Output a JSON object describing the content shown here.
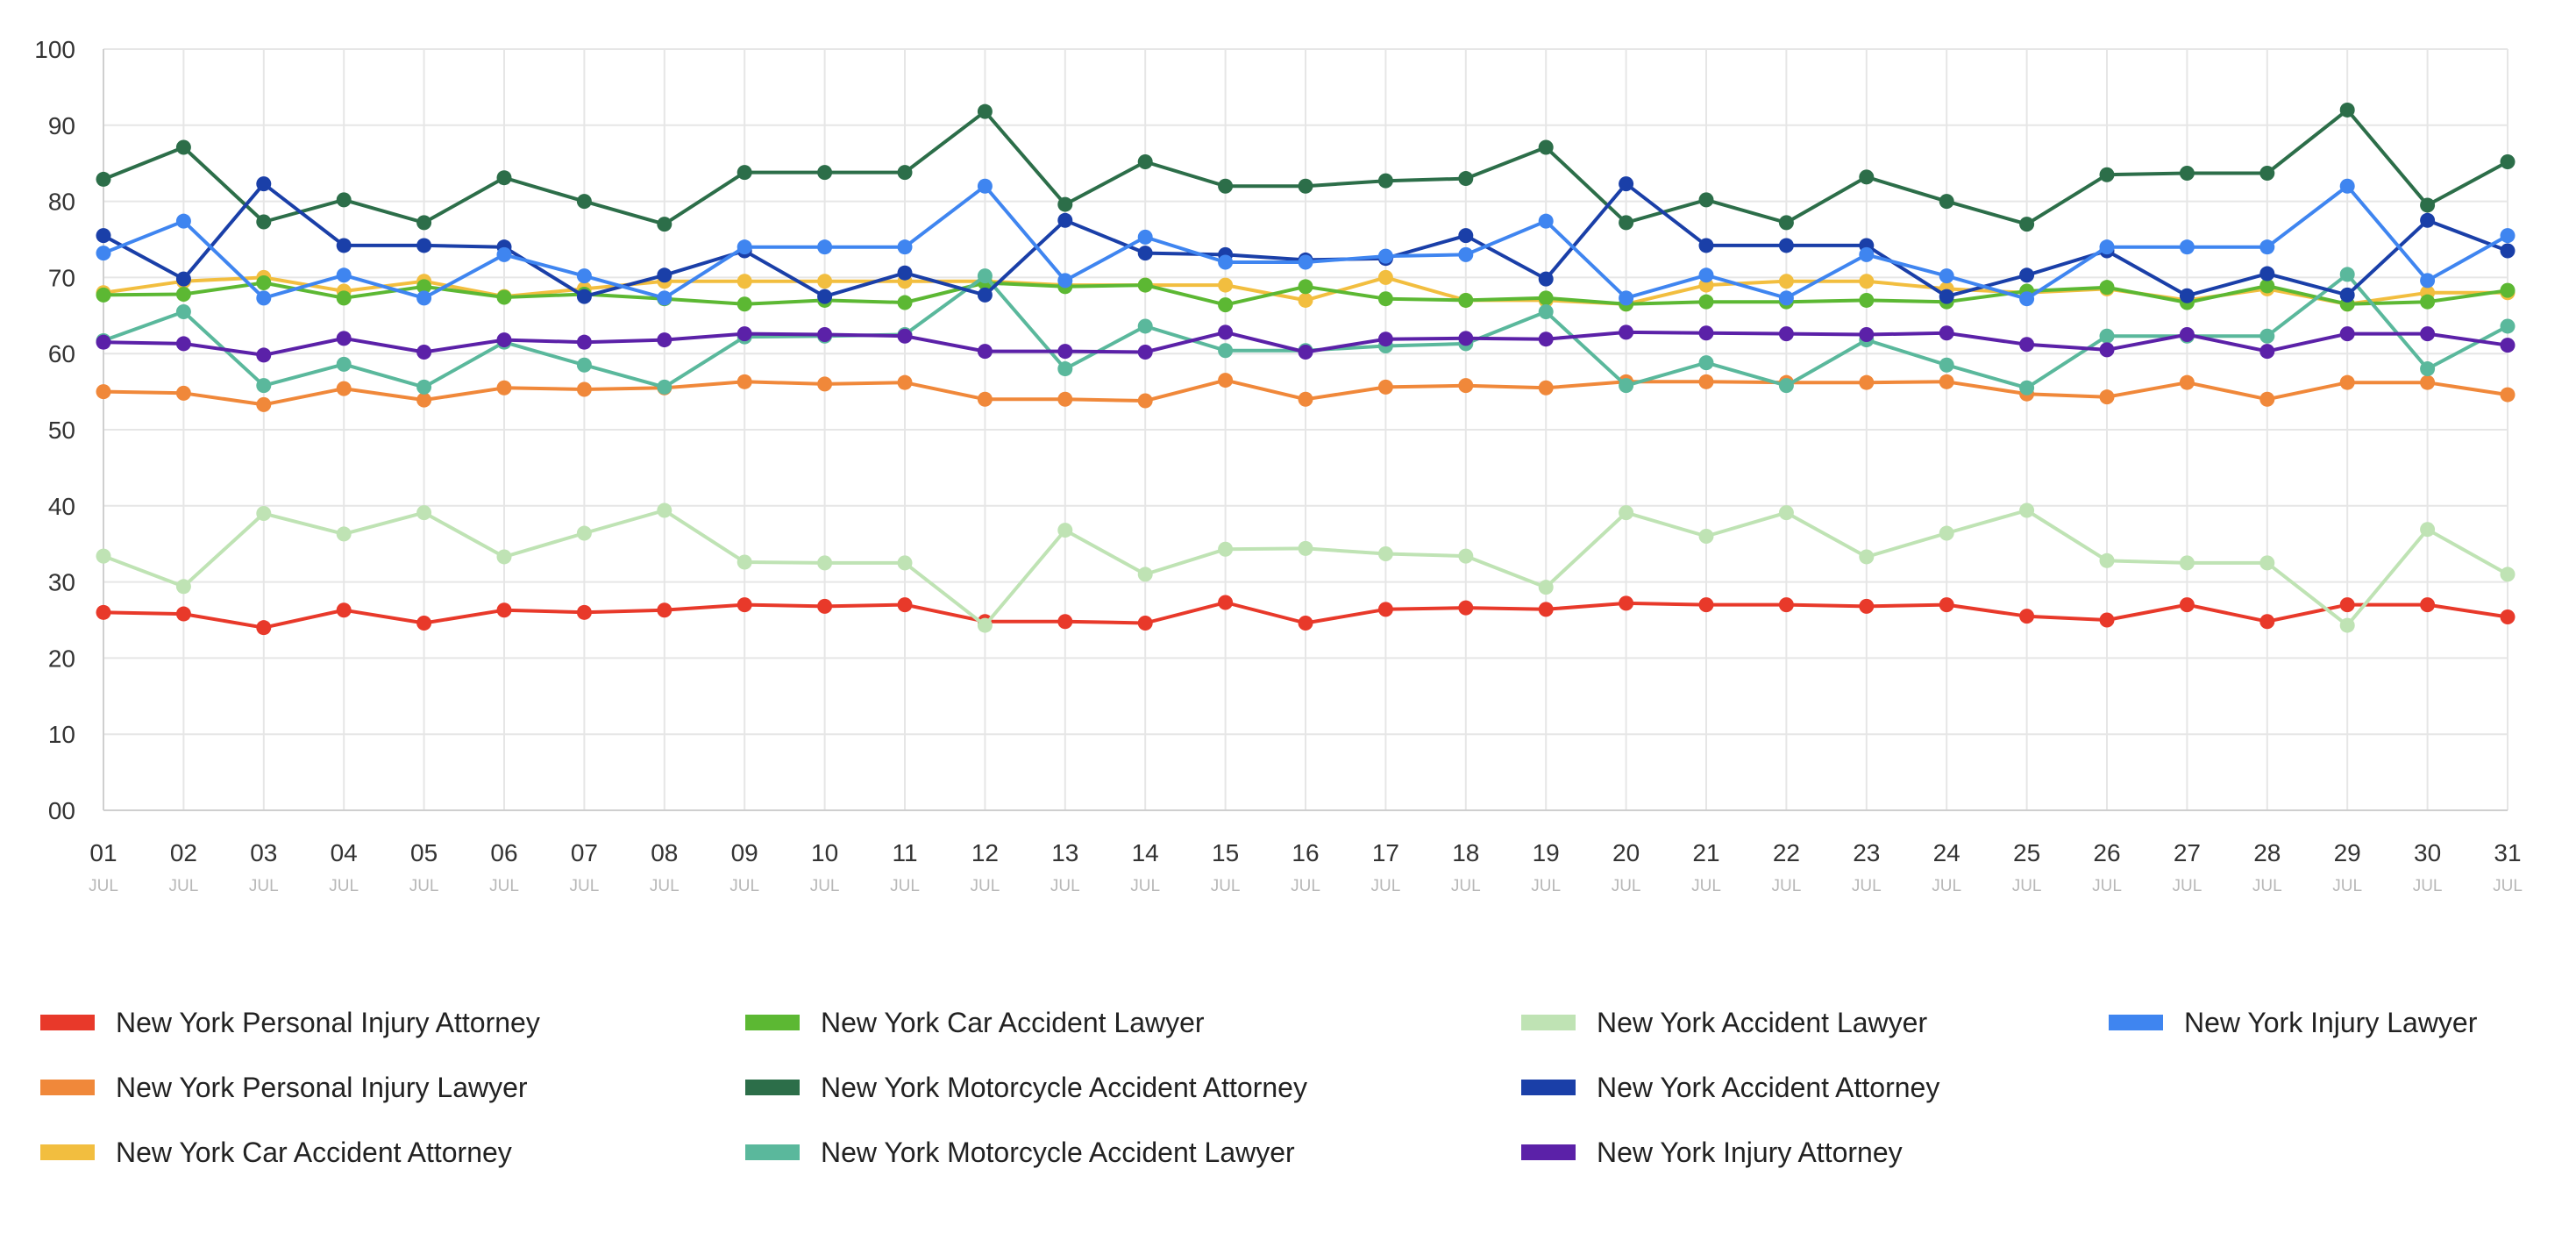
{
  "chart_data": {
    "type": "line",
    "title": "",
    "xlabel": "",
    "ylabel": "",
    "ylim": [
      0,
      100
    ],
    "yticks": [
      "00",
      "10",
      "20",
      "30",
      "40",
      "50",
      "60",
      "70",
      "80",
      "90",
      "100"
    ],
    "grid": true,
    "legend_position": "bottom",
    "x_month": "JUL",
    "x": [
      "01",
      "02",
      "03",
      "04",
      "05",
      "06",
      "07",
      "08",
      "09",
      "10",
      "11",
      "12",
      "13",
      "14",
      "15",
      "16",
      "17",
      "18",
      "19",
      "20",
      "21",
      "22",
      "23",
      "24",
      "25",
      "26",
      "27",
      "28",
      "29",
      "30",
      "31"
    ],
    "series": [
      {
        "name": "New York Personal Injury Attorney",
        "color": "#e8392a",
        "values": [
          26,
          25.8,
          24,
          26.3,
          24.6,
          26.3,
          26,
          26.3,
          27,
          26.8,
          27,
          24.8,
          24.8,
          24.6,
          27.3,
          24.6,
          26.4,
          26.6,
          26.4,
          27.2,
          27,
          27,
          26.8,
          27,
          25.5,
          25,
          27,
          24.8,
          27,
          27,
          25.4
        ]
      },
      {
        "name": "New York Personal Injury Lawyer",
        "color": "#f0883a",
        "values": [
          55,
          54.8,
          53.3,
          55.4,
          53.9,
          55.5,
          55.3,
          55.5,
          56.3,
          56,
          56.2,
          54,
          54,
          53.8,
          56.5,
          54,
          55.6,
          55.8,
          55.5,
          56.3,
          56.3,
          56.2,
          56.2,
          56.3,
          54.7,
          54.3,
          56.2,
          54,
          56.2,
          56.2,
          54.6
        ]
      },
      {
        "name": "New York Car Accident Attorney",
        "color": "#f2be3f",
        "values": [
          68,
          69.5,
          70,
          68.2,
          69.5,
          67.5,
          68.5,
          69.5,
          69.5,
          69.5,
          69.5,
          69.5,
          69,
          69,
          69,
          67,
          70,
          67,
          67,
          66.5,
          69,
          69.5,
          69.5,
          68.5,
          68,
          68.5,
          67,
          68.5,
          66.5,
          68,
          68
        ]
      },
      {
        "name": "New York Car Accident Lawyer",
        "color": "#5cb833",
        "values": [
          67.7,
          67.8,
          69.3,
          67.3,
          68.8,
          67.4,
          67.8,
          67.2,
          66.5,
          67,
          66.7,
          69.3,
          68.8,
          69,
          66.4,
          68.8,
          67.2,
          67,
          67.3,
          66.5,
          66.8,
          66.8,
          67,
          66.8,
          68.2,
          68.7,
          66.7,
          68.9,
          66.5,
          66.8,
          68.3
        ]
      },
      {
        "name": "New York Motorcycle Accident Attorney",
        "color": "#2c6e49",
        "values": [
          82.9,
          87.1,
          77.3,
          80.2,
          77.2,
          83.1,
          80,
          77,
          83.8,
          83.8,
          83.8,
          91.8,
          79.6,
          85.2,
          82,
          82,
          82.7,
          83,
          87.1,
          77.2,
          80.2,
          77.2,
          83.2,
          80,
          77,
          83.5,
          83.7,
          83.7,
          92,
          79.5,
          85.2
        ]
      },
      {
        "name": "New York Motorcycle Accident Lawyer",
        "color": "#5ab89c",
        "values": [
          61.7,
          65.5,
          55.8,
          58.6,
          55.6,
          61.5,
          58.5,
          55.6,
          62.2,
          62.3,
          62.5,
          70.2,
          58,
          63.6,
          60.4,
          60.4,
          61,
          61.3,
          65.5,
          55.8,
          58.8,
          55.8,
          61.8,
          58.5,
          55.5,
          62.3,
          62.3,
          62.3,
          70.4,
          58,
          63.6
        ]
      },
      {
        "name": "New York Accident Lawyer",
        "color": "#bfe3b4",
        "values": [
          33.4,
          29.4,
          39,
          36.3,
          39.1,
          33.3,
          36.4,
          39.4,
          32.6,
          32.5,
          32.5,
          24.3,
          36.8,
          31,
          34.3,
          34.4,
          33.7,
          33.4,
          29.3,
          39.1,
          36,
          39.1,
          33.3,
          36.4,
          39.4,
          32.8,
          32.5,
          32.5,
          24.3,
          36.9,
          31
        ]
      },
      {
        "name": "New York Accident Attorney",
        "color": "#1a3fa8",
        "values": [
          75.5,
          69.8,
          82.3,
          74.2,
          74.2,
          74,
          67.5,
          70.3,
          73.5,
          67.5,
          70.6,
          67.7,
          77.5,
          73.2,
          73,
          72.3,
          72.5,
          75.5,
          69.8,
          82.3,
          74.2,
          74.2,
          74.2,
          67.5,
          70.3,
          73.5,
          67.6,
          70.5,
          67.7,
          77.5,
          73.5
        ]
      },
      {
        "name": "New York Injury Attorney",
        "color": "#5b21a8",
        "values": [
          61.5,
          61.3,
          59.8,
          62,
          60.2,
          61.8,
          61.5,
          61.8,
          62.6,
          62.5,
          62.3,
          60.3,
          60.3,
          60.2,
          62.8,
          60.2,
          61.9,
          62,
          61.9,
          62.8,
          62.7,
          62.6,
          62.5,
          62.7,
          61.2,
          60.5,
          62.5,
          60.3,
          62.6,
          62.6,
          61.1
        ]
      },
      {
        "name": "New York Injury Lawyer",
        "color": "#3f85f0",
        "values": [
          73.2,
          77.4,
          67.3,
          70.3,
          67.3,
          73,
          70.2,
          67.3,
          74,
          74,
          74,
          82,
          69.6,
          75.3,
          72,
          72,
          72.8,
          73,
          77.4,
          67.3,
          70.3,
          67.3,
          73,
          70.2,
          67.2,
          74,
          74,
          74,
          82,
          69.6,
          75.5
        ]
      }
    ]
  }
}
